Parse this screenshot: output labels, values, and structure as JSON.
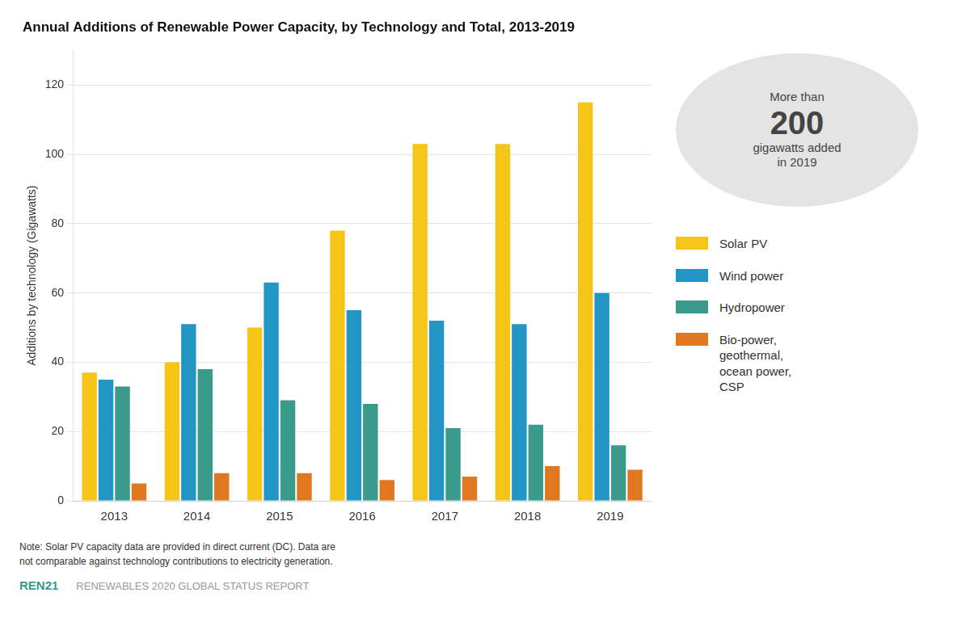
{
  "chart_data": {
    "type": "bar",
    "title": "Annual Additions of Renewable Power Capacity, by Technology and Total, 2013-2019",
    "ylabel": "Additions by technology (Gigawatts)",
    "categories": [
      2013,
      2014,
      2015,
      2016,
      2017,
      2018,
      2019
    ],
    "series": [
      {
        "name": "Solar PV",
        "color": "#F5C518",
        "values": [
          37,
          40,
          50,
          78,
          103,
          103,
          115
        ]
      },
      {
        "name": "Wind power",
        "color": "#2196C4",
        "values": [
          35,
          51,
          63,
          55,
          52,
          51,
          60
        ]
      },
      {
        "name": "Hydropower",
        "color": "#3A9A8C",
        "values": [
          33,
          38,
          29,
          28,
          21,
          22,
          16
        ]
      },
      {
        "name": "Bio-power,\ngeothermal,\nocean power,\nCSP",
        "color": "#E07820",
        "values": [
          5,
          8,
          8,
          6,
          7,
          10,
          9
        ]
      }
    ],
    "ylim": [
      0,
      130
    ],
    "yticks": [
      0,
      20,
      40,
      60,
      80,
      100,
      120
    ],
    "grid": true,
    "legend": "right",
    "annotations": [
      "More than\n200\ngigawatts added\nin 2019",
      "Note: Solar PV capacity data are provided in direct current (DC). Data are\nnot comparable against technology contributions to electricity generation.",
      "REN21",
      "RENEWABLES 2020 GLOBAL STATUS REPORT"
    ]
  }
}
